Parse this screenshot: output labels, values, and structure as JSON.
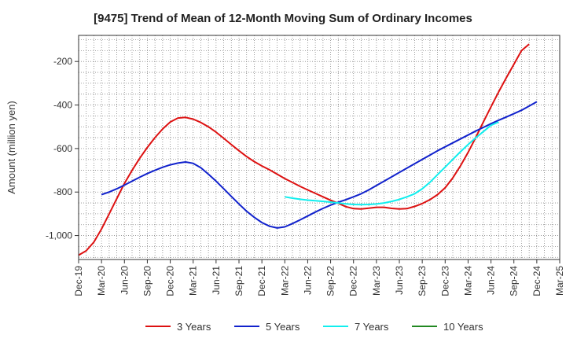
{
  "chart_data": {
    "type": "line",
    "title": "[9475]  Trend of Mean of 12-Month Moving Sum of Ordinary Incomes",
    "xlabel": "",
    "ylabel": "Amount (million yen)",
    "ylim": [
      -1110,
      -80
    ],
    "yticks": [
      -200,
      -400,
      -600,
      -800,
      -1000
    ],
    "ytick_labels": [
      "-200",
      "-400",
      "-600",
      "-800",
      "-1,000"
    ],
    "x_tick_labels": [
      "Dec-19",
      "Mar-20",
      "Jun-20",
      "Sep-20",
      "Dec-20",
      "Mar-21",
      "Jun-21",
      "Sep-21",
      "Dec-21",
      "Mar-22",
      "Jun-22",
      "Sep-22",
      "Dec-22",
      "Mar-23",
      "Jun-23",
      "Sep-23",
      "Dec-23",
      "Mar-24",
      "Jun-24",
      "Sep-24",
      "Dec-24",
      "Mar-25"
    ],
    "grid": true,
    "legend_position": "bottom",
    "series": [
      {
        "name": "3 Years",
        "color": "#dd1111",
        "start_index": 0,
        "values": [
          -1090,
          -1070,
          -1030,
          -970,
          -900,
          -830,
          -760,
          -700,
          -645,
          -595,
          -550,
          -510,
          -478,
          -460,
          -457,
          -465,
          -480,
          -500,
          -525,
          -553,
          -582,
          -610,
          -637,
          -660,
          -680,
          -698,
          -718,
          -738,
          -756,
          -774,
          -790,
          -806,
          -822,
          -838,
          -852,
          -867,
          -876,
          -878,
          -874,
          -870,
          -870,
          -875,
          -878,
          -876,
          -866,
          -853,
          -835,
          -812,
          -780,
          -735,
          -680,
          -618,
          -550,
          -478,
          -408,
          -340,
          -275,
          -213,
          -150,
          -120
        ]
      },
      {
        "name": "5 Years",
        "color": "#1122cc",
        "start_index": 3,
        "values": [
          -812,
          -800,
          -785,
          -768,
          -750,
          -732,
          -715,
          -700,
          -686,
          -675,
          -667,
          -662,
          -668,
          -688,
          -718,
          -750,
          -785,
          -820,
          -855,
          -888,
          -916,
          -940,
          -957,
          -965,
          -960,
          -945,
          -928,
          -910,
          -892,
          -875,
          -860,
          -847,
          -835,
          -822,
          -808,
          -790,
          -770,
          -750,
          -730,
          -710,
          -690,
          -670,
          -650,
          -630,
          -610,
          -592,
          -574,
          -556,
          -538,
          -520,
          -503,
          -486,
          -470,
          -455,
          -440,
          -424,
          -405,
          -385
        ]
      },
      {
        "name": "7 Years",
        "color": "#11eeee",
        "start_index": 27,
        "values": [
          -822,
          -828,
          -833,
          -837,
          -840,
          -843,
          -846,
          -850,
          -854,
          -857,
          -858,
          -857,
          -855,
          -850,
          -843,
          -834,
          -822,
          -808,
          -785,
          -755,
          -720,
          -685,
          -650,
          -615,
          -582,
          -551,
          -522,
          -493,
          -478
        ]
      },
      {
        "name": "10 Years",
        "color": "#228822",
        "start_index": 0,
        "values": []
      }
    ]
  }
}
